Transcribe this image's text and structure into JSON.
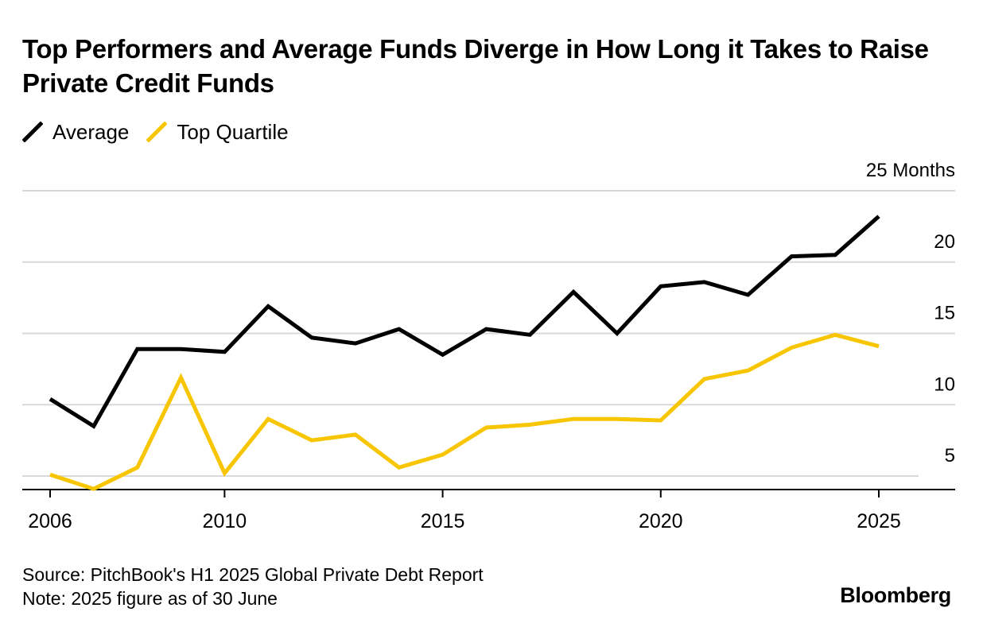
{
  "title": "Top Performers and Average Funds Diverge in How Long it Takes to Raise Private Credit Funds",
  "legend": [
    {
      "label": "Average",
      "color": "#000000"
    },
    {
      "label": "Top Quartile",
      "color": "#f7c600"
    }
  ],
  "footer": {
    "source": "Source: PitchBook's H1 2025 Global Private Debt Report",
    "note": "Note: 2025 figure as of 30 June"
  },
  "brand": "Bloomberg",
  "chart_data": {
    "type": "line",
    "title": "Top Performers and Average Funds Diverge in How Long it Takes to Raise Private Credit Funds",
    "xlabel": "",
    "ylabel": "Months",
    "y_unit_label": "25 Months",
    "ylim": [
      4,
      25
    ],
    "xlim": [
      2006,
      2026
    ],
    "y_ticks": [
      5,
      10,
      15,
      20
    ],
    "x_ticks": [
      2006,
      2010,
      2015,
      2020,
      2025
    ],
    "grid": true,
    "legend_position": "top-left",
    "x": [
      2006,
      2007,
      2008,
      2009,
      2010,
      2011,
      2012,
      2013,
      2014,
      2015,
      2016,
      2017,
      2018,
      2019,
      2020,
      2021,
      2022,
      2023,
      2024,
      2025
    ],
    "series": [
      {
        "name": "Average",
        "color": "#000000",
        "values": [
          10.4,
          8.5,
          13.9,
          13.9,
          13.7,
          16.9,
          14.7,
          14.3,
          15.3,
          13.5,
          15.3,
          14.9,
          17.9,
          15.0,
          18.3,
          18.6,
          17.7,
          20.4,
          20.5,
          23.2
        ]
      },
      {
        "name": "Top Quartile",
        "color": "#f7c600",
        "values": [
          5.1,
          4.1,
          5.6,
          11.9,
          5.2,
          9.0,
          7.5,
          7.9,
          5.6,
          6.5,
          8.4,
          8.6,
          9.0,
          9.0,
          8.9,
          11.8,
          12.4,
          14.0,
          14.9,
          14.1
        ]
      }
    ]
  }
}
